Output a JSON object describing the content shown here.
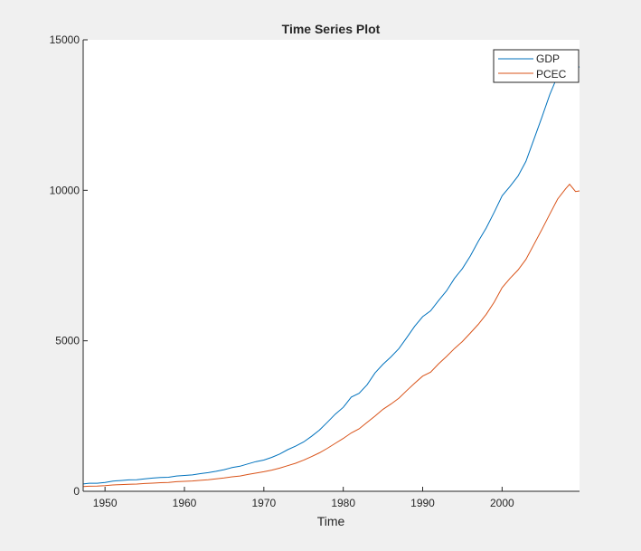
{
  "chart_data": {
    "type": "line",
    "title": "Time Series Plot",
    "xlabel": "Time",
    "ylabel": "",
    "xlim": [
      1947.25,
      2009.75
    ],
    "ylim": [
      0,
      15000
    ],
    "xticks": [
      1950,
      1960,
      1970,
      1980,
      1990,
      2000
    ],
    "yticks": [
      0,
      5000,
      10000,
      15000
    ],
    "grid": false,
    "legend_position": "top-right",
    "x": [
      1947.25,
      1948,
      1949,
      1950,
      1951,
      1952,
      1953,
      1954,
      1955,
      1956,
      1957,
      1958,
      1959,
      1960,
      1961,
      1962,
      1963,
      1964,
      1965,
      1966,
      1967,
      1968,
      1969,
      1970,
      1971,
      1972,
      1973,
      1974,
      1975,
      1976,
      1977,
      1978,
      1979,
      1980,
      1981,
      1982,
      1983,
      1984,
      1985,
      1986,
      1987,
      1988,
      1989,
      1990,
      1991,
      1992,
      1993,
      1994,
      1995,
      1996,
      1997,
      1998,
      1999,
      2000,
      2001,
      2002,
      2003,
      2004,
      2005,
      2006,
      2007,
      2008,
      2008.5,
      2009.25,
      2009.75
    ],
    "series": [
      {
        "name": "GDP",
        "color": "#0072BD",
        "values": [
          244,
          269,
          267,
          294,
          339,
          358,
          379,
          381,
          415,
          438,
          461,
          467,
          507,
          526,
          545,
          586,
          618,
          664,
          719,
          788,
          833,
          910,
          985,
          1038,
          1127,
          1238,
          1383,
          1500,
          1638,
          1825,
          2031,
          2295,
          2563,
          2789,
          3128,
          3255,
          3537,
          3933,
          4220,
          4463,
          4740,
          5104,
          5484,
          5803,
          5996,
          6338,
          6657,
          7072,
          7398,
          7817,
          8304,
          8747,
          9268,
          9817,
          10128,
          10470,
          10961,
          11686,
          12422,
          13178,
          13808,
          14292,
          14415,
          14050,
          14100
        ]
      },
      {
        "name": "PCEC",
        "color": "#D95319",
        "values": [
          157,
          168,
          174,
          190,
          209,
          221,
          234,
          241,
          259,
          272,
          287,
          296,
          318,
          331,
          342,
          363,
          383,
          411,
          443,
          480,
          507,
          558,
          605,
          649,
          702,
          771,
          852,
          933,
          1034,
          1152,
          1278,
          1429,
          1593,
          1755,
          1938,
          2074,
          2287,
          2498,
          2723,
          2898,
          3092,
          3347,
          3593,
          3826,
          3960,
          4235,
          4478,
          4743,
          4976,
          5257,
          5547,
          5880,
          6283,
          6767,
          7074,
          7350,
          7704,
          8196,
          8694,
          9207,
          9710,
          10050,
          10200,
          9960,
          9980
        ]
      }
    ]
  }
}
